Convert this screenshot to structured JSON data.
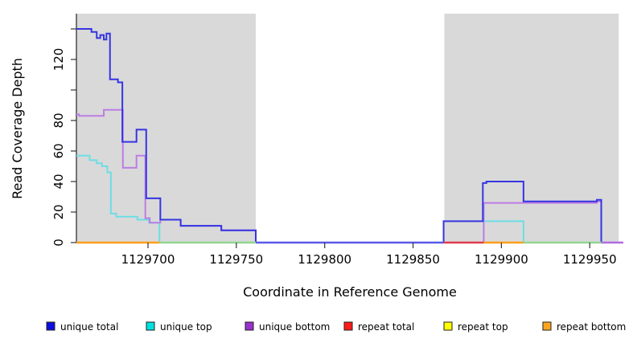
{
  "chart_data": {
    "type": "line",
    "subtype": "step-after-coverage-plot",
    "title": "",
    "xlabel": "Coordinate in Reference Genome",
    "ylabel": "Read Coverage Depth",
    "xlim": [
      1129659.5,
      1129969
    ],
    "ylim": [
      0,
      140
    ],
    "grid": false,
    "legend_position": "bottom",
    "x_ticks": [
      1129700,
      1129750,
      1129800,
      1129850,
      1129900,
      1129950
    ],
    "y_ticks_labeled": [
      0,
      20,
      40,
      60,
      80,
      120
    ],
    "y_ticks_unlabeled": [
      100,
      140
    ],
    "background_color": "#ffffff",
    "shaded_region_color": "#d9d9d9",
    "background_regions": [
      {
        "from": 1129659.5,
        "to": 1129761,
        "color": "#d9d9d9"
      },
      {
        "from": 1129867.7,
        "to": 1129966.4,
        "color": "#d9d9d9"
      }
    ],
    "series": [
      {
        "name": "unique total",
        "color": "#3535e2",
        "legend_color": "#0d0de0",
        "points": [
          [
            1129659.5,
            140
          ],
          [
            1129668,
            138
          ],
          [
            1129671,
            134
          ],
          [
            1129673,
            136
          ],
          [
            1129675,
            133
          ],
          [
            1129676.5,
            137
          ],
          [
            1129678.5,
            107
          ],
          [
            1129683,
            105
          ],
          [
            1129685.5,
            66
          ],
          [
            1129693.5,
            74
          ],
          [
            1129699,
            29
          ],
          [
            1129707,
            15
          ],
          [
            1129718.5,
            11
          ],
          [
            1129741.5,
            8
          ],
          [
            1129761,
            0
          ],
          [
            1129867.3,
            14
          ],
          [
            1129889.5,
            39
          ],
          [
            1129891.5,
            40
          ],
          [
            1129912.5,
            27
          ],
          [
            1129954,
            28
          ],
          [
            1129956.5,
            0
          ]
        ]
      },
      {
        "name": "unique top",
        "color": "#6edde4",
        "legend_color": "#00e0e0",
        "points": [
          [
            1129659.5,
            57
          ],
          [
            1129667,
            54
          ],
          [
            1129671,
            52
          ],
          [
            1129674,
            50
          ],
          [
            1129677,
            46
          ],
          [
            1129679,
            19
          ],
          [
            1129682,
            17
          ],
          [
            1129694,
            15
          ],
          [
            1129700.5,
            13
          ],
          [
            1129706.5,
            0
          ],
          [
            1129890,
            14
          ],
          [
            1129912.5,
            0
          ]
        ]
      },
      {
        "name": "unique bottom",
        "color": "#bd7de4",
        "legend_color": "#9932cc",
        "points": [
          [
            1129659.5,
            84
          ],
          [
            1129661,
            83
          ],
          [
            1129675,
            87
          ],
          [
            1129685.8,
            49
          ],
          [
            1129693.5,
            57
          ],
          [
            1129698.5,
            16
          ],
          [
            1129701,
            13
          ],
          [
            1129707,
            15
          ],
          [
            1129718.5,
            11
          ],
          [
            1129741.5,
            8
          ],
          [
            1129761,
            0
          ],
          [
            1129890,
            26
          ],
          [
            1129954,
            27
          ],
          [
            1129956.5,
            0
          ]
        ]
      },
      {
        "name": "repeat total",
        "color": "#e23b50",
        "legend_color": "#ff1a1a",
        "points": [
          [
            1129659.5,
            0
          ]
        ]
      },
      {
        "name": "repeat top",
        "color": "#f5f533",
        "legend_color": "#ffff00",
        "points": [
          [
            1129659.5,
            0
          ]
        ]
      },
      {
        "name": "repeat bottom",
        "color": "#ff9e1b",
        "legend_color": "#ffa51e",
        "points": [
          [
            1129659.5,
            0
          ]
        ]
      }
    ],
    "baseline_segments": [
      {
        "from": 1129659.5,
        "to": 1129706.5,
        "color": "#ff9e1b"
      },
      {
        "from": 1129706.5,
        "to": 1129761,
        "color": "#93d693"
      },
      {
        "from": 1129761,
        "to": 1129867.3,
        "color": "#5a5ae8"
      },
      {
        "from": 1129867.3,
        "to": 1129890,
        "color": "#e23b50"
      },
      {
        "from": 1129890,
        "to": 1129912.5,
        "color": "#ff9e1b"
      },
      {
        "from": 1129912.5,
        "to": 1129956.5,
        "color": "#93d693"
      },
      {
        "from": 1129956.5,
        "to": 1129969,
        "color": "#b06ae0"
      }
    ],
    "legend": [
      {
        "label": "unique total",
        "color": "#0d0de0"
      },
      {
        "label": "unique top",
        "color": "#00e0e0"
      },
      {
        "label": "unique bottom",
        "color": "#9932cc"
      },
      {
        "label": "repeat total",
        "color": "#ff1a1a"
      },
      {
        "label": "repeat top",
        "color": "#ffff00"
      },
      {
        "label": "repeat bottom",
        "color": "#ffa51e"
      }
    ]
  },
  "layout_note": "coverage depth step plot with shaded flanking regions"
}
